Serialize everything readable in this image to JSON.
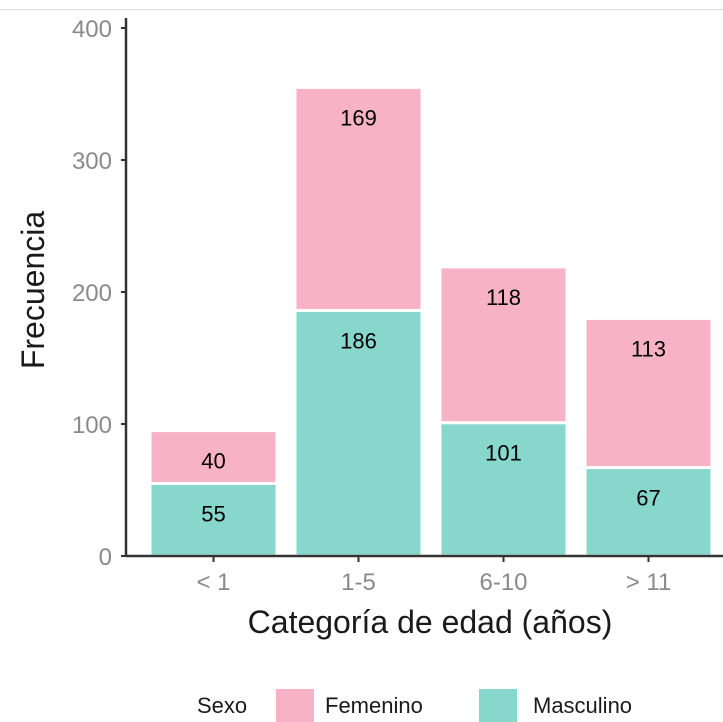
{
  "chart_data": {
    "type": "bar",
    "stacked": true,
    "categories": [
      "< 1",
      "1-5",
      "6-10",
      "> 11"
    ],
    "series": [
      {
        "name": "Masculino",
        "values": [
          55,
          186,
          101,
          67
        ]
      },
      {
        "name": "Femenino",
        "values": [
          40,
          169,
          118,
          113
        ]
      }
    ],
    "xlabel": "Categoría de edad (años)",
    "ylabel": "Frecuencia",
    "ylim": [
      0,
      400
    ],
    "yticks": [
      0,
      100,
      200,
      300,
      400
    ],
    "grid": false,
    "legend": {
      "title": "Sexo",
      "placement": "bottom",
      "entries": [
        "Femenino",
        "Masculino"
      ]
    },
    "colors": {
      "Masculino": "#87d7cc",
      "Femenino": "#f8b2c8"
    }
  }
}
